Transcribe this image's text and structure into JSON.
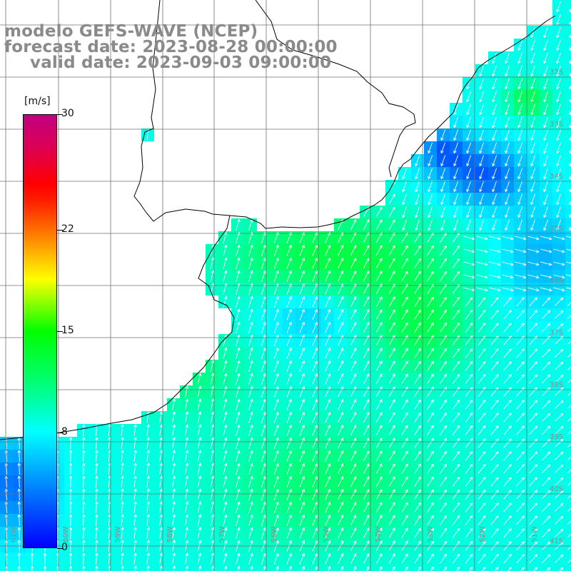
{
  "title": {
    "line1": "modelo GEFS-WAVE (NCEP)",
    "line2": "forecast date: 2023-08-28 00:00:00",
    "line3": "valid date: 2023-09-03 09:00:00"
  },
  "colorbar": {
    "unit": "[m/s]",
    "ticks": [
      {
        "value": 30,
        "label": "30"
      },
      {
        "value": 22,
        "label": "22"
      },
      {
        "value": 15,
        "label": "15"
      },
      {
        "value": 8,
        "label": "8"
      },
      {
        "value": 0,
        "label": "0"
      }
    ],
    "range": [
      0,
      30
    ],
    "colors": [
      "#0000ff",
      "#00c8ff",
      "#00ffff",
      "#00ff00",
      "#ffff00",
      "#ff7000",
      "#ff0000",
      "#c00080"
    ]
  },
  "map": {
    "lat_labels": [
      "32S",
      "33S",
      "34S",
      "35S",
      "36S",
      "37S",
      "38S",
      "39S",
      "40S",
      "41S"
    ],
    "lon_labels": [
      "61W",
      "60W",
      "59W",
      "58W",
      "57W",
      "56W",
      "55W",
      "54W",
      "53W",
      "52W",
      "51W"
    ],
    "grid_color": "#707070",
    "coast_color": "#000000",
    "land_color": "#ffffff",
    "arrow_color": "#ffffff"
  }
}
